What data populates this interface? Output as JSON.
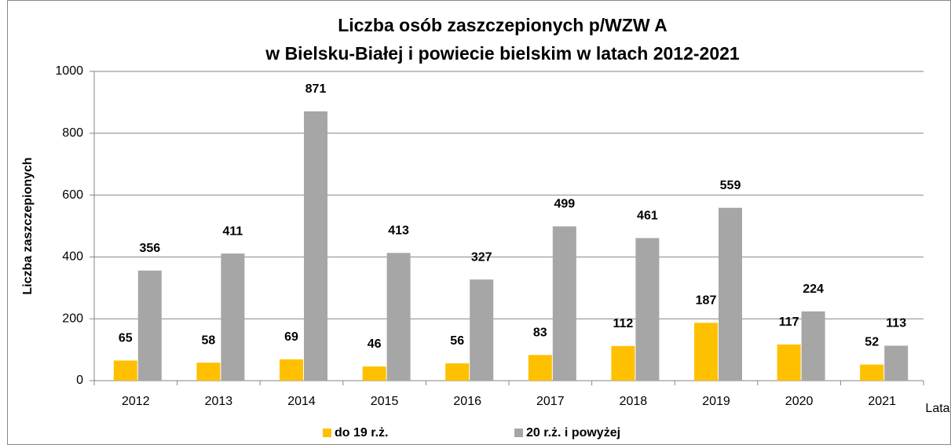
{
  "chart_data": {
    "type": "bar",
    "title": [
      "Liczba osób zaszczepionych p/WZW A",
      "w Bielsku-Białej i powiecie bielskim w latach 2012-2021"
    ],
    "x_label": "Lata",
    "y_label": "Liczba zaszczepionych",
    "categories": [
      "2012",
      "2013",
      "2014",
      "2015",
      "2016",
      "2017",
      "2018",
      "2019",
      "2020",
      "2021"
    ],
    "series": [
      {
        "name": "do 19 r.ż.",
        "color": "#ffc000",
        "values": [
          65,
          58,
          69,
          46,
          56,
          83,
          112,
          187,
          117,
          52
        ]
      },
      {
        "name": "20 r.ż. i powyżej",
        "color": "#a6a6a6",
        "values": [
          356,
          411,
          871,
          413,
          327,
          499,
          461,
          559,
          224,
          113
        ]
      }
    ],
    "ylim": [
      0,
      1000
    ],
    "yticks": [
      0,
      200,
      400,
      600,
      800,
      1000
    ],
    "grid": true,
    "legend": "bottom"
  }
}
